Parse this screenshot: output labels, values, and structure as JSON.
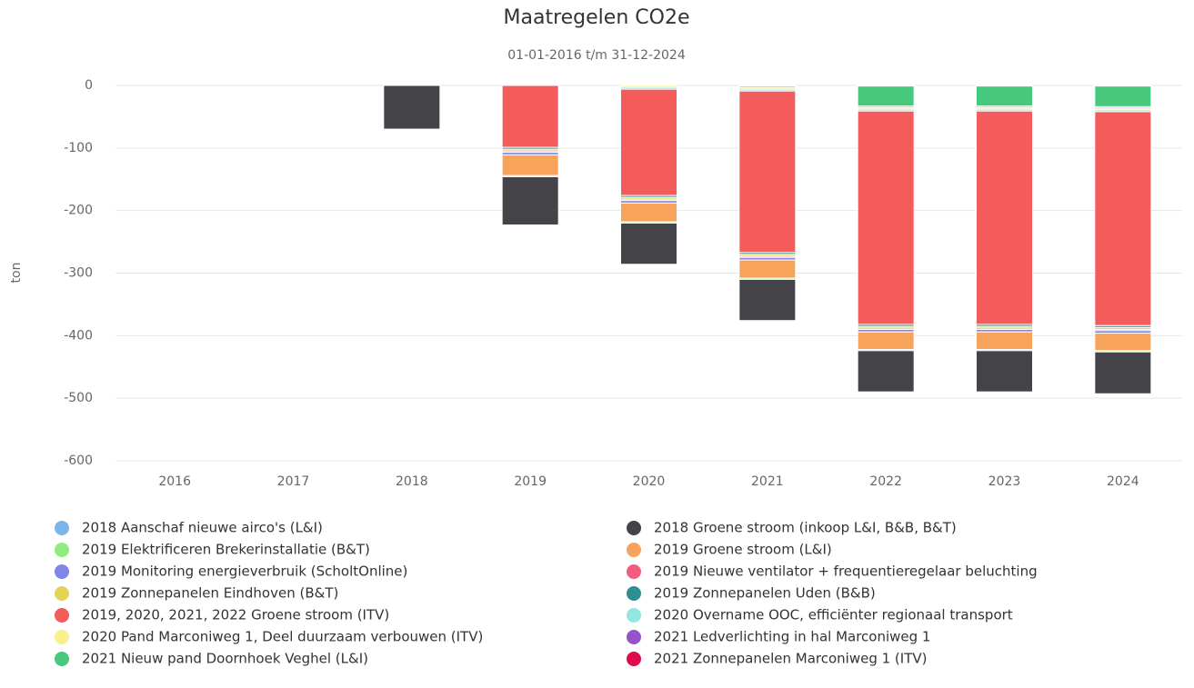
{
  "chart_data": {
    "type": "stacked_bar",
    "title": "Maatregelen CO2e",
    "subtitle": "01-01-2016 t/m 31-12-2024",
    "y_label": "ton",
    "categories": [
      "2016",
      "2017",
      "2018",
      "2019",
      "2020",
      "2021",
      "2022",
      "2023",
      "2024"
    ],
    "ylim": [
      -600,
      0
    ],
    "yticks": [
      0,
      -100,
      -200,
      -300,
      -400,
      -500,
      -600
    ],
    "grid": true,
    "series": [
      {
        "name": "2018 Aanschaf nieuwe airco's (L&I)",
        "color": "#7cb5ec",
        "values": [
          null,
          null,
          -1,
          -1,
          -1,
          -1,
          -1,
          -1,
          -1
        ]
      },
      {
        "name": "2018 Groene stroom (inkoop L&I, B&B, B&T)",
        "color": "#434348",
        "values": [
          null,
          null,
          -70,
          -77,
          -66,
          -66,
          -66,
          -66,
          -67
        ]
      },
      {
        "name": "2019 Elektrificeren Brekerinstallatie (B&T)",
        "color": "#90ed7d",
        "values": [
          null,
          null,
          null,
          -2,
          -2,
          -2,
          -2,
          -2,
          -2
        ]
      },
      {
        "name": "2019 Groene stroom (L&I)",
        "color": "#f7a35c",
        "values": [
          null,
          null,
          null,
          -33,
          -30,
          -29,
          -28,
          -28,
          -28
        ]
      },
      {
        "name": "2019 Monitoring energieverbruik (ScholtOnline)",
        "color": "#8085e9",
        "values": [
          null,
          null,
          null,
          -4,
          -4,
          -4,
          -4,
          -4,
          -4
        ]
      },
      {
        "name": "2019 Nieuwe ventilator + frequentieregelaar beluchting",
        "color": "#f15c80",
        "values": [
          null,
          null,
          null,
          -2,
          -2,
          -2,
          -2,
          -2,
          -2
        ]
      },
      {
        "name": "2019 Zonnepanelen Eindhoven (B&T)",
        "color": "#e4d354",
        "values": [
          null,
          null,
          null,
          -3,
          -3,
          -3,
          -3,
          -3,
          -3
        ]
      },
      {
        "name": "2019 Zonnepanelen Uden (B&B)",
        "color": "#2b908f",
        "values": [
          null,
          null,
          null,
          -3,
          -3,
          -3,
          -3,
          -3,
          -3
        ]
      },
      {
        "name": "2019, 2020, 2021, 2022 Groene stroom (ITV)",
        "color": "#f45b5b",
        "values": [
          null,
          null,
          null,
          -99,
          -170,
          -258,
          -341,
          -341,
          -342
        ]
      },
      {
        "name": "2020 Overname OOC, efficiënter regionaal transport",
        "color": "#91e8e1",
        "values": [
          null,
          null,
          null,
          null,
          -3,
          -3,
          -3,
          -3,
          -3
        ]
      },
      {
        "name": "2020 Pand Marconiweg 1, Deel duurzaam verbouwen (ITV)",
        "color": "#f7f08c",
        "values": [
          null,
          null,
          null,
          null,
          -3,
          -3,
          -3,
          -3,
          -3
        ]
      },
      {
        "name": "2021 Ledverlichting in hal Marconiweg 1",
        "color": "#9653c9",
        "values": [
          null,
          null,
          null,
          null,
          null,
          -2,
          -2,
          -2,
          -2
        ]
      },
      {
        "name": "2021 Nieuw pand Doornhoek Veghel (L&I)",
        "color": "#47c97d",
        "values": [
          null,
          null,
          null,
          null,
          null,
          null,
          -32,
          -32,
          -33
        ]
      },
      {
        "name": "2021 Zonnepanelen Marconiweg 1 (ITV)",
        "color": "#e0094a",
        "values": [
          null,
          null,
          null,
          null,
          null,
          -1,
          -1,
          -1,
          -1
        ]
      }
    ]
  }
}
